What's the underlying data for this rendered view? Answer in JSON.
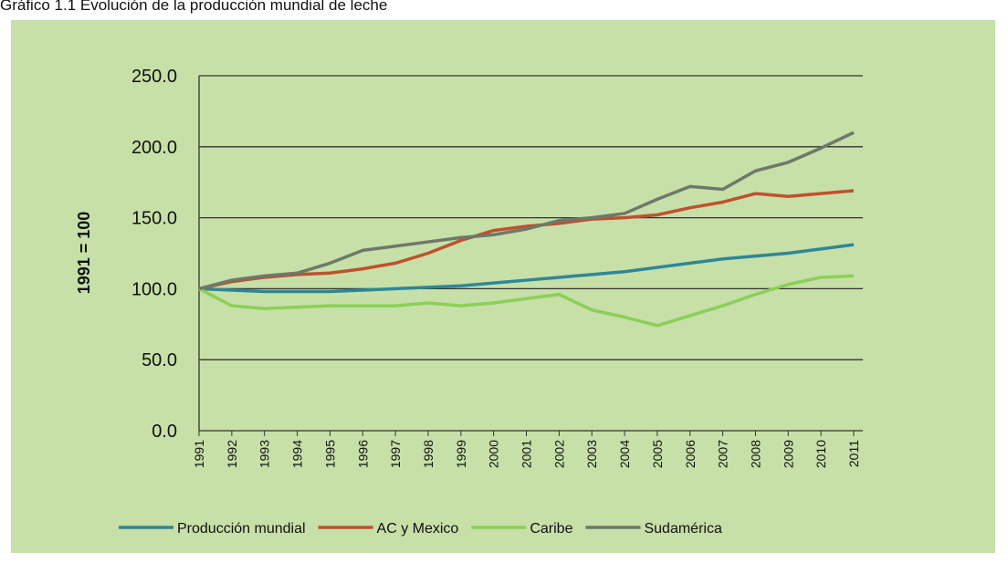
{
  "chart_data": {
    "type": "line",
    "title": "Gráfico 1.1 Evolución de la producción mundial de leche",
    "y_label": "1991 = 100",
    "categories": [
      "1991",
      "1992",
      "1993",
      "1994",
      "1995",
      "1996",
      "1997",
      "1998",
      "1999",
      "2000",
      "2001",
      "2002",
      "2003",
      "2004",
      "2005",
      "2006",
      "2007",
      "2008",
      "2009",
      "2010",
      "2011"
    ],
    "series": [
      {
        "name": "Producción mundial",
        "color": "#2e8796",
        "values": [
          100,
          99,
          98,
          98,
          98,
          99,
          100,
          101,
          102,
          104,
          106,
          108,
          110,
          112,
          115,
          118,
          121,
          123,
          125,
          128,
          131
        ]
      },
      {
        "name": "AC y Mexico",
        "color": "#c0502f",
        "values": [
          100,
          105,
          108,
          110,
          111,
          114,
          118,
          125,
          134,
          141,
          144,
          146,
          149,
          150,
          152,
          157,
          161,
          167,
          165,
          167,
          169
        ]
      },
      {
        "name": "Caribe",
        "color": "#8ccf58",
        "values": [
          100,
          88,
          86,
          87,
          88,
          88,
          88,
          90,
          88,
          90,
          93,
          96,
          85,
          80,
          74,
          81,
          88,
          96,
          103,
          108,
          109
        ]
      },
      {
        "name": "Sudamérica",
        "color": "#6e786a",
        "values": [
          100,
          106,
          109,
          111,
          118,
          127,
          130,
          133,
          136,
          138,
          142,
          148,
          150,
          153,
          163,
          172,
          170,
          183,
          189,
          199,
          210
        ]
      }
    ],
    "ylim": [
      0,
      250
    ],
    "yticks": [
      {
        "value": 0,
        "label": "0.0"
      },
      {
        "value": 50,
        "label": "50.0"
      },
      {
        "value": 100,
        "label": "100.0"
      },
      {
        "value": 150,
        "label": "150.0"
      },
      {
        "value": 200,
        "label": "200.0"
      },
      {
        "value": 250,
        "label": "250.0"
      }
    ],
    "grid": true
  }
}
